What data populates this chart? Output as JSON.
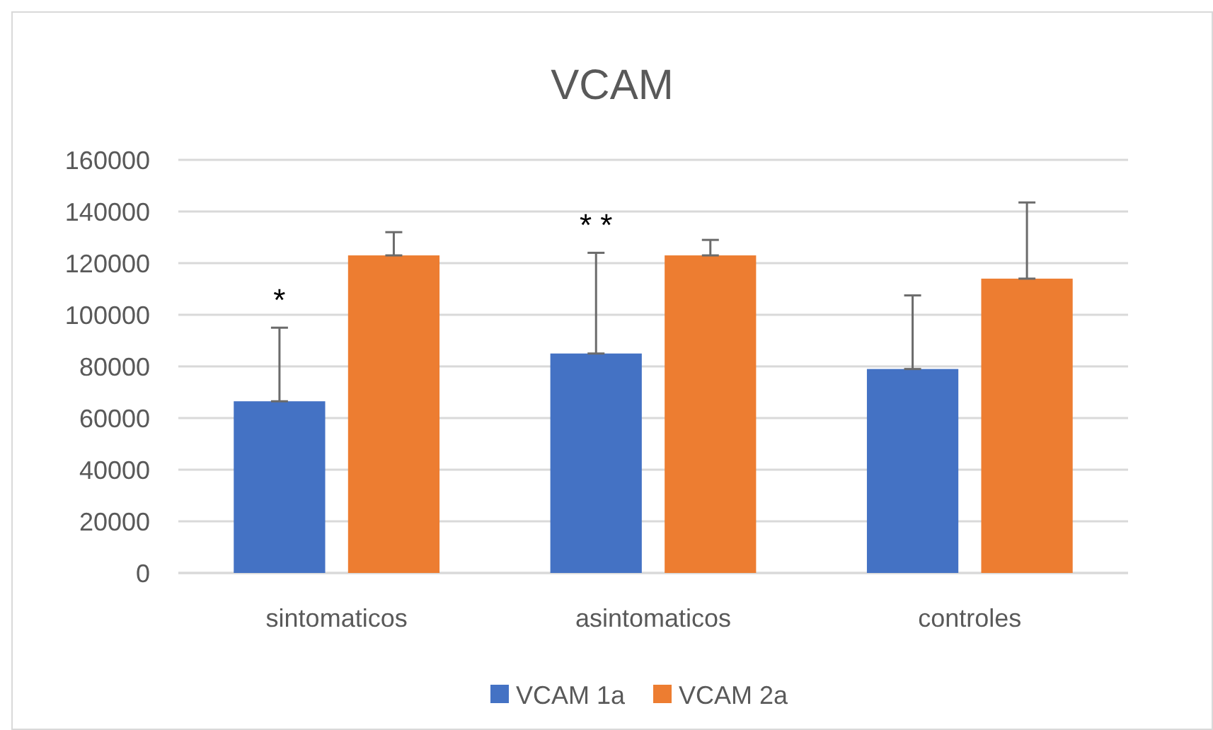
{
  "chart_data": {
    "type": "bar",
    "title": "VCAM",
    "categories": [
      "sintomaticos",
      "asintomaticos",
      "controles"
    ],
    "series": [
      {
        "name": "VCAM 1a",
        "color": "#4472c4",
        "values": [
          66500,
          85000,
          79000
        ],
        "errors": [
          [
            66500,
            95000
          ],
          [
            85000,
            124000
          ],
          [
            79000,
            107500
          ]
        ]
      },
      {
        "name": "VCAM 2a",
        "color": "#ed7d31",
        "values": [
          123000,
          123000,
          114000
        ],
        "errors": [
          [
            123000,
            132000
          ],
          [
            123000,
            129000
          ],
          [
            114000,
            143500
          ]
        ]
      }
    ],
    "ylim": [
      0,
      160000
    ],
    "yticks": [
      0,
      20000,
      40000,
      60000,
      80000,
      100000,
      120000,
      140000,
      160000
    ],
    "grid": "y",
    "legend": "bottom",
    "annotations": [
      "*",
      "* *"
    ]
  }
}
